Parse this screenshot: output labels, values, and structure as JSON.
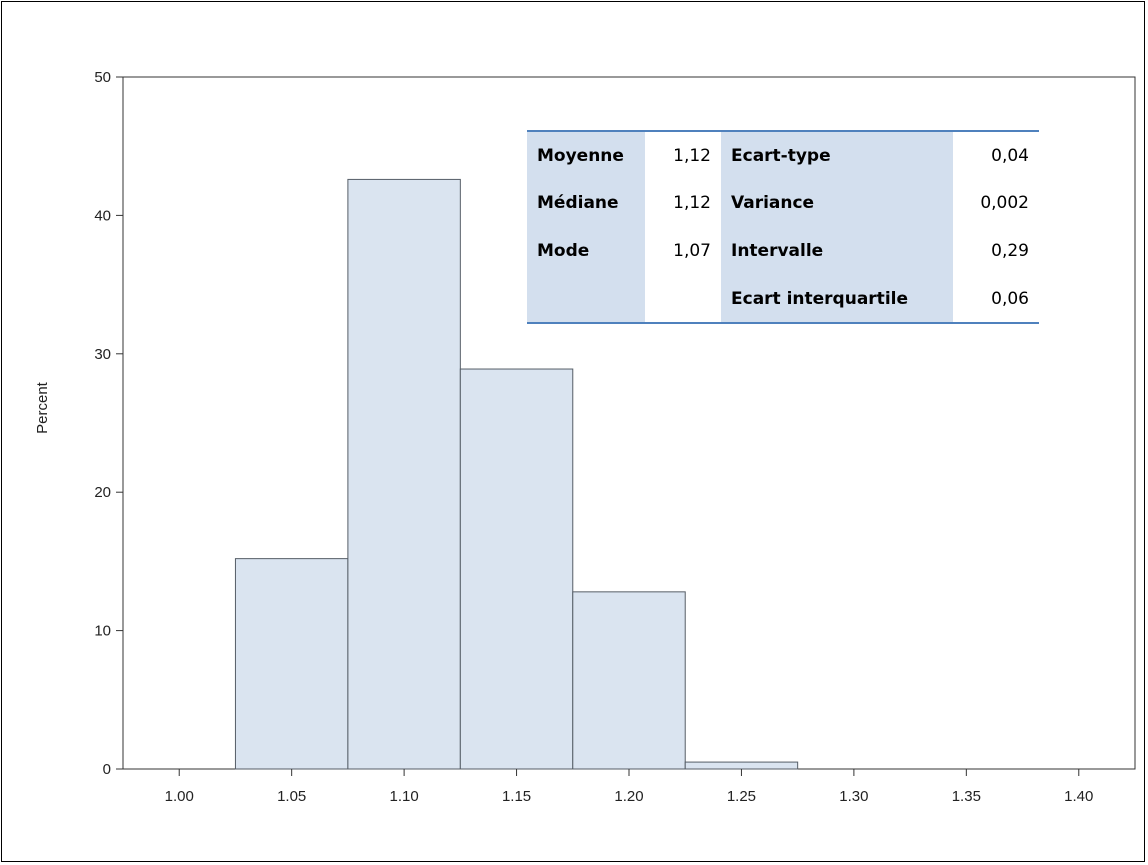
{
  "chart_data": {
    "type": "bar",
    "ylabel": "Percent",
    "xlabel": "",
    "title": "",
    "ylim": [
      0,
      50
    ],
    "xlim": [
      0.975,
      1.425
    ],
    "yticks": [
      "0",
      "10",
      "20",
      "30",
      "40",
      "50"
    ],
    "xticks": [
      "1.00",
      "1.05",
      "1.10",
      "1.15",
      "1.20",
      "1.25",
      "1.30",
      "1.35",
      "1.40"
    ],
    "bin_width": 0.05,
    "categories": [
      "1.05",
      "1.10",
      "1.15",
      "1.20",
      "1.25"
    ],
    "values": [
      15.2,
      42.6,
      28.9,
      12.8,
      0.5
    ],
    "grid": false,
    "colors": {
      "bar_fill": "#dae4f0",
      "bar_stroke": "#555d66",
      "table_accent": "#4f81bd",
      "table_label_bg": "#d3dfee"
    }
  },
  "stats_table": {
    "rows": [
      {
        "label1": "Moyenne",
        "value1": "1,12",
        "label2": "Ecart-type",
        "value2": "0,04"
      },
      {
        "label1": "Médiane",
        "value1": "1,12",
        "label2": "Variance",
        "value2": "0,002"
      },
      {
        "label1": "Mode",
        "value1": "1,07",
        "label2": "Intervalle",
        "value2": "0,29"
      },
      {
        "label1": "",
        "value1": "",
        "label2": "Ecart interquartile",
        "value2": "0,06"
      }
    ]
  }
}
